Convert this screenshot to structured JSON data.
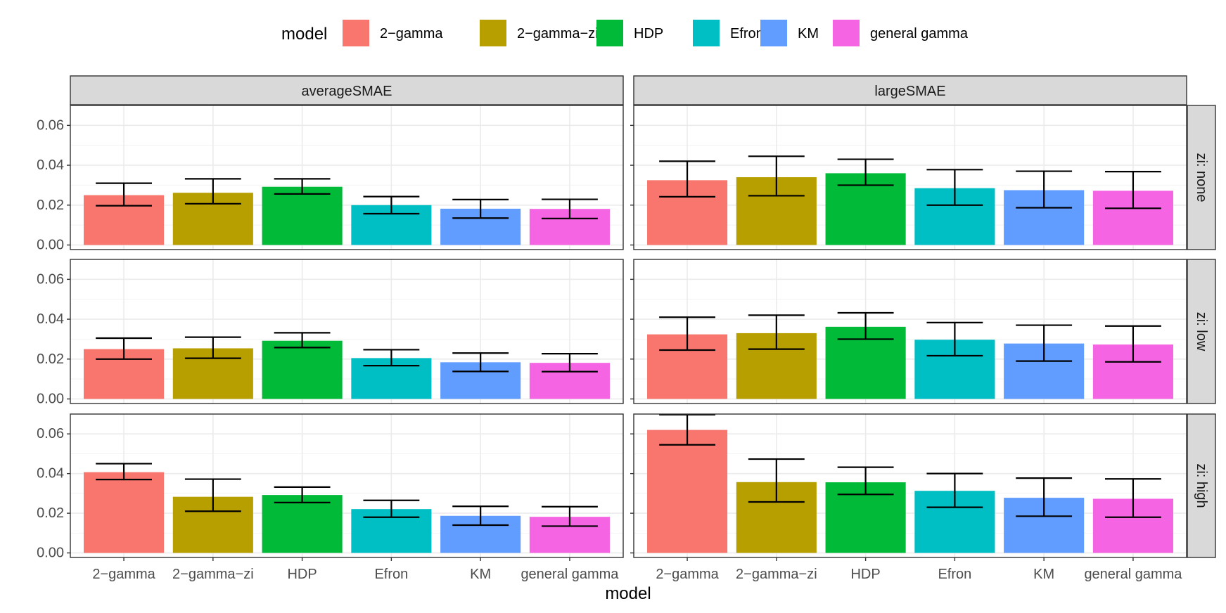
{
  "chart_data": {
    "type": "bar",
    "facet_columns": [
      "averageSMAE",
      "largeSMAE"
    ],
    "facet_rows": [
      "zi: none",
      "zi: low",
      "zi: high"
    ],
    "categories": [
      "2−gamma",
      "2−gamma−zi",
      "HDP",
      "Efron",
      "KM",
      "general gamma"
    ],
    "colors": [
      "#F8766D",
      "#B79F00",
      "#00BA38",
      "#00BFC4",
      "#619CFF",
      "#F564E3"
    ],
    "xlabel": "model",
    "ylabel": "",
    "ylim": [
      0,
      0.07
    ],
    "yticks": [
      0.0,
      0.02,
      0.04,
      0.06
    ],
    "ytick_labels": [
      "0.00",
      "0.02",
      "0.04",
      "0.06"
    ],
    "grid": true,
    "legend": {
      "title": "model",
      "position": "top",
      "entries": [
        "2−gamma",
        "2−gamma−zi",
        "HDP",
        "Efron",
        "KM",
        "general gamma"
      ]
    },
    "panels": [
      {
        "column": "averageSMAE",
        "row": "zi: none",
        "values": [
          0.025,
          0.0262,
          0.0292,
          0.02,
          0.0182,
          0.0181
        ],
        "error_low": [
          0.0197,
          0.0207,
          0.0256,
          0.0157,
          0.0135,
          0.0133
        ],
        "error_high": [
          0.031,
          0.0332,
          0.0332,
          0.0243,
          0.0228,
          0.0229
        ]
      },
      {
        "column": "largeSMAE",
        "row": "zi: none",
        "values": [
          0.0325,
          0.034,
          0.036,
          0.0285,
          0.0275,
          0.0272
        ],
        "error_low": [
          0.0242,
          0.0247,
          0.03,
          0.02,
          0.0187,
          0.0184
        ],
        "error_high": [
          0.042,
          0.0445,
          0.043,
          0.0378,
          0.037,
          0.0368
        ]
      },
      {
        "column": "averageSMAE",
        "row": "zi: low",
        "values": [
          0.025,
          0.0254,
          0.0292,
          0.0205,
          0.0184,
          0.0181
        ],
        "error_low": [
          0.02,
          0.0204,
          0.0258,
          0.0167,
          0.0138,
          0.0137
        ],
        "error_high": [
          0.0305,
          0.031,
          0.0332,
          0.0247,
          0.023,
          0.0227
        ]
      },
      {
        "column": "largeSMAE",
        "row": "zi: low",
        "values": [
          0.0324,
          0.033,
          0.0362,
          0.0297,
          0.0278,
          0.0273
        ],
        "error_low": [
          0.0245,
          0.025,
          0.03,
          0.0217,
          0.019,
          0.0186
        ],
        "error_high": [
          0.041,
          0.042,
          0.0432,
          0.0383,
          0.037,
          0.0366
        ]
      },
      {
        "column": "averageSMAE",
        "row": "zi: high",
        "values": [
          0.0407,
          0.0283,
          0.0292,
          0.0221,
          0.0187,
          0.0182
        ],
        "error_low": [
          0.037,
          0.021,
          0.0254,
          0.018,
          0.014,
          0.0135
        ],
        "error_high": [
          0.045,
          0.0372,
          0.0332,
          0.0265,
          0.0235,
          0.0233
        ]
      },
      {
        "column": "largeSMAE",
        "row": "zi: high",
        "values": [
          0.062,
          0.0357,
          0.0356,
          0.0313,
          0.0278,
          0.0273
        ],
        "error_low": [
          0.0545,
          0.0257,
          0.0295,
          0.023,
          0.0185,
          0.018
        ],
        "error_high": [
          0.0697,
          0.0473,
          0.0432,
          0.04,
          0.0377,
          0.0373
        ]
      }
    ]
  }
}
